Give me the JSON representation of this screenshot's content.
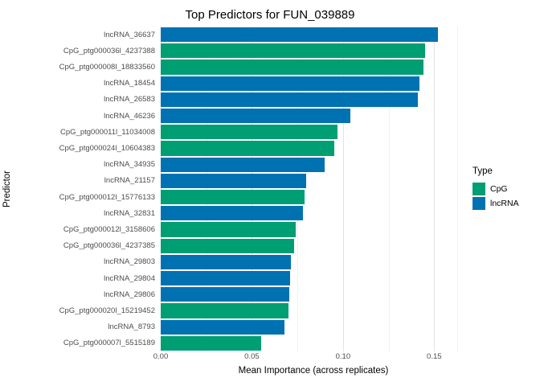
{
  "chart_data": {
    "type": "bar",
    "orientation": "horizontal",
    "title": "Top Predictors for FUN_039889",
    "xlabel": "Mean Importance (across replicates)",
    "ylabel": "Predictor",
    "xlim": [
      0,
      0.1675
    ],
    "grid": {
      "major": [
        0,
        0.05,
        0.1,
        0.15
      ],
      "minor": [
        0.025,
        0.075,
        0.125,
        0.1625
      ]
    },
    "xticks": [
      {
        "label": "0.00",
        "value": 0
      },
      {
        "label": "0.05",
        "value": 0.05
      },
      {
        "label": "0.10",
        "value": 0.1
      },
      {
        "label": "0.15",
        "value": 0.15
      }
    ],
    "categories": [
      "lncRNA_36637",
      "CpG_ptg000036l_4237388",
      "CpG_ptg000008l_18833560",
      "lncRNA_18454",
      "lncRNA_26583",
      "lncRNA_46236",
      "CpG_ptg000011l_11034008",
      "CpG_ptg000024l_10604383",
      "lncRNA_34935",
      "lncRNA_21157",
      "CpG_ptg000012l_15776133",
      "lncRNA_32831",
      "CpG_ptg000012l_3158606",
      "CpG_ptg000036l_4237385",
      "lncRNA_29803",
      "lncRNA_29804",
      "lncRNA_29806",
      "CpG_ptg000020l_15219452",
      "lncRNA_8793",
      "CpG_ptg000007l_5515189"
    ],
    "values": [
      0.152,
      0.145,
      0.144,
      0.142,
      0.141,
      0.104,
      0.097,
      0.095,
      0.09,
      0.08,
      0.079,
      0.078,
      0.074,
      0.073,
      0.0715,
      0.071,
      0.0705,
      0.07,
      0.068,
      0.055
    ],
    "types": [
      "lncRNA",
      "CpG",
      "CpG",
      "lncRNA",
      "lncRNA",
      "lncRNA",
      "CpG",
      "CpG",
      "lncRNA",
      "lncRNA",
      "CpG",
      "lncRNA",
      "CpG",
      "CpG",
      "lncRNA",
      "lncRNA",
      "lncRNA",
      "CpG",
      "lncRNA",
      "CpG"
    ],
    "colors": {
      "CpG": "#009E73",
      "lncRNA": "#0072B2"
    },
    "legend": {
      "title": "Type",
      "entries": [
        "CpG",
        "lncRNA"
      ],
      "position": "right"
    },
    "background": "#ffffff"
  }
}
